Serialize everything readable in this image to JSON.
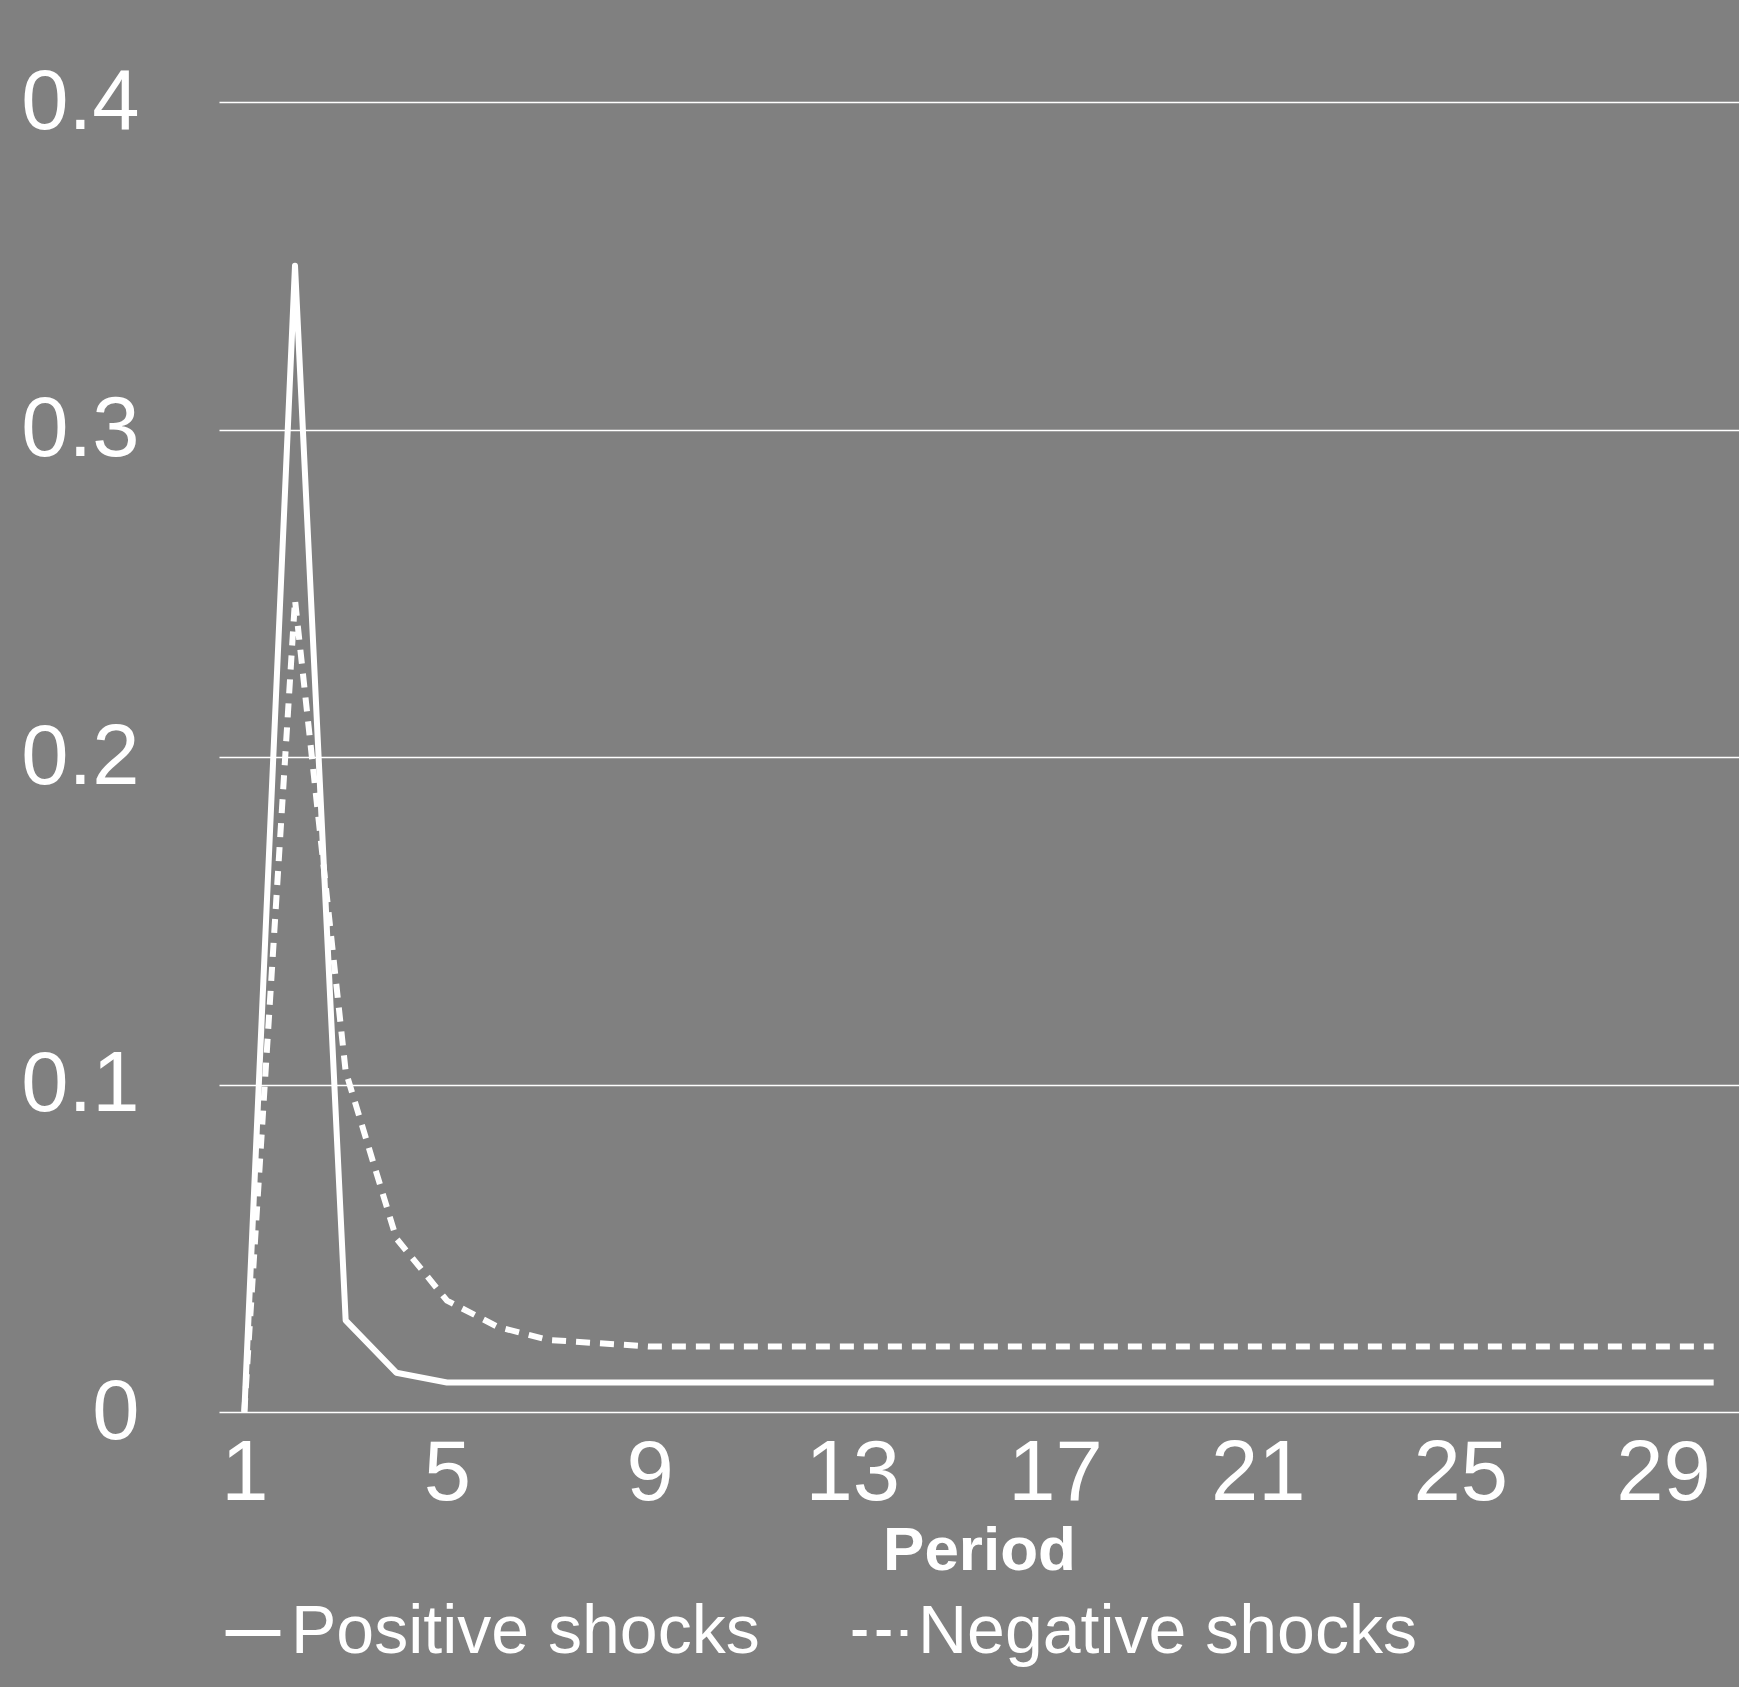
{
  "chart_data": {
    "type": "line",
    "xlabel": "Period",
    "categories": [
      "1",
      null,
      null,
      null,
      "5",
      null,
      null,
      null,
      "9",
      null,
      null,
      null,
      "13",
      null,
      null,
      null,
      "17",
      null,
      null,
      null,
      "21",
      null,
      null,
      null,
      "25",
      null,
      null,
      null,
      "29",
      null
    ],
    "series": [
      {
        "name": "Positive shocks",
        "color": "#ffffff",
        "line_style": "solid",
        "values": [
          0,
          0.35,
          0.028,
          0.012,
          0.009,
          0.009,
          0.009,
          0.009,
          0.009,
          0.009,
          0.009,
          0.009,
          0.009,
          0.009,
          0.009,
          0.009,
          0.009,
          0.009,
          0.009,
          0.009,
          0.009,
          0.009,
          0.009,
          0.009,
          0.009,
          0.009,
          0.009,
          0.009,
          0.009,
          0.009
        ]
      },
      {
        "name": "Negative shocks",
        "color": "#ffffff",
        "line_style": "dashed",
        "values": [
          0,
          0.248,
          0.104,
          0.053,
          0.034,
          0.026,
          0.022,
          0.021,
          0.02,
          0.02,
          0.02,
          0.02,
          0.02,
          0.02,
          0.02,
          0.02,
          0.02,
          0.02,
          0.02,
          0.02,
          0.02,
          0.02,
          0.02,
          0.02,
          0.02,
          0.02,
          0.02,
          0.02,
          0.02,
          0.02
        ]
      }
    ],
    "ylim": [
      0,
      0.4
    ],
    "yticks": [
      0,
      0.1,
      0.2,
      0.3,
      0.4
    ],
    "grid": "y",
    "legend": "bottom"
  }
}
